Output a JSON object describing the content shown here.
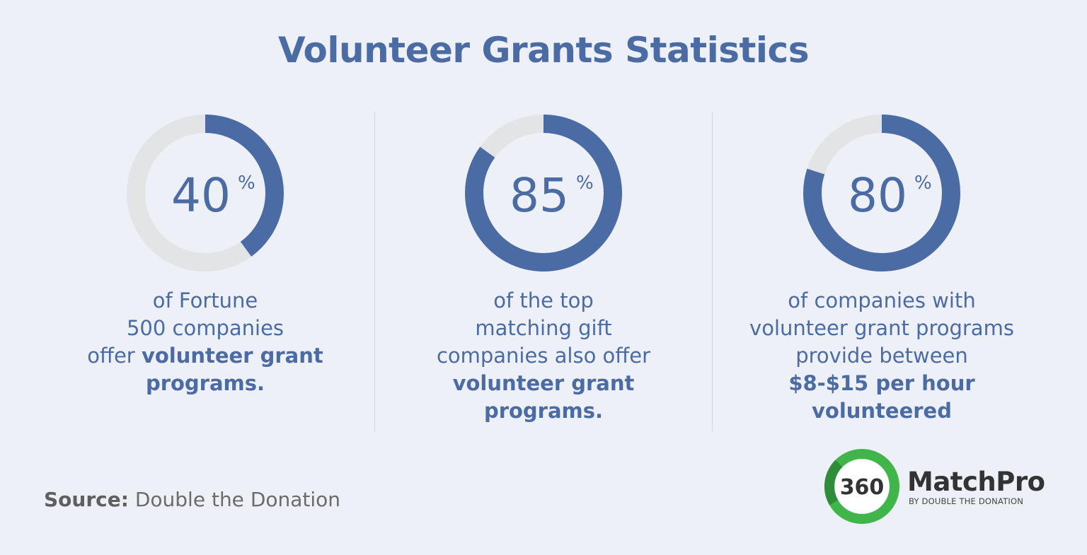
{
  "title": "Volunteer Grants Statistics",
  "colors": {
    "accent": "#4b6ba4",
    "track": "#e3e4e6",
    "background": "#edf0f6",
    "logo_green": "#3fb54a"
  },
  "chart_data": [
    {
      "type": "pie",
      "value": 40,
      "value_label": "40",
      "unit": "%",
      "description": [
        "of Fortune",
        "500 companies",
        "offer |volunteer grant",
        "|programs."
      ]
    },
    {
      "type": "pie",
      "value": 85,
      "value_label": "85",
      "unit": "%",
      "description": [
        "of the top",
        "matching gift",
        "companies also offer",
        "|volunteer grant",
        "|programs."
      ]
    },
    {
      "type": "pie",
      "value": 80,
      "value_label": "80",
      "unit": "%",
      "description": [
        "of companies with",
        "volunteer grant programs",
        "provide between",
        "|$8-$15 per hour",
        "|volunteered"
      ]
    }
  ],
  "source": {
    "label": "Source:",
    "text": "Double the Donation"
  },
  "logo": {
    "number": "360",
    "brand": "MatchPro",
    "tagline": "BY DOUBLE THE DONATION"
  }
}
